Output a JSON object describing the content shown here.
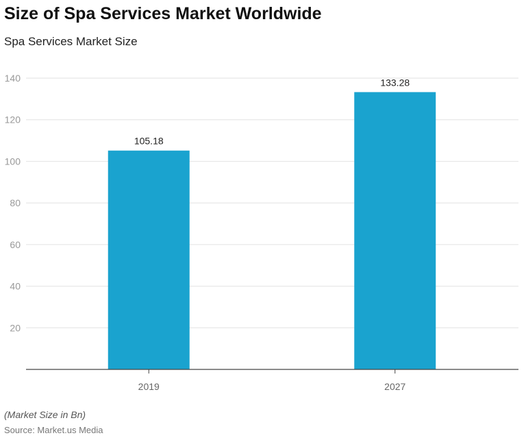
{
  "title": "Size of Spa Services Market Worldwide",
  "subtitle": "Spa Services Market Size",
  "note": "(Market Size in Bn)",
  "source": "Source: Market.us Media",
  "chart_data": {
    "type": "bar",
    "title": "Size of Spa Services Market Worldwide",
    "subtitle": "Spa Services Market Size",
    "categories": [
      "2019",
      "2027"
    ],
    "values": [
      105.18,
      133.28
    ],
    "data_labels": [
      "105.18",
      "133.28"
    ],
    "ylim": [
      0,
      140
    ],
    "yticks": [
      20,
      40,
      60,
      80,
      100,
      120,
      140
    ],
    "grid": true,
    "bar_color": "#1aa3cf"
  }
}
